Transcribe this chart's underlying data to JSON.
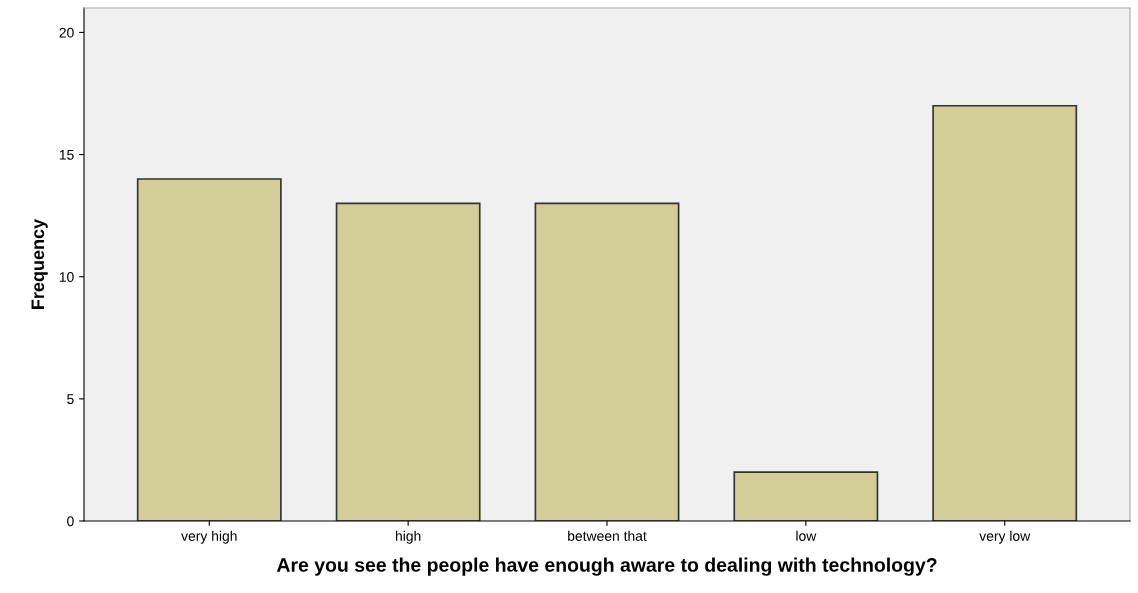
{
  "chart_data": {
    "type": "bar",
    "xlabel": "Are you see the people have enough aware to dealing with technology?",
    "ylabel": "Frequency",
    "categories": [
      "very high",
      "high",
      "between that",
      "low",
      "very low"
    ],
    "values": [
      14,
      13,
      13,
      2,
      17
    ],
    "color": "#d3ce97",
    "ylim": [
      0,
      21
    ],
    "yticks": [
      0,
      5,
      10,
      15,
      20
    ],
    "grid": false
  }
}
